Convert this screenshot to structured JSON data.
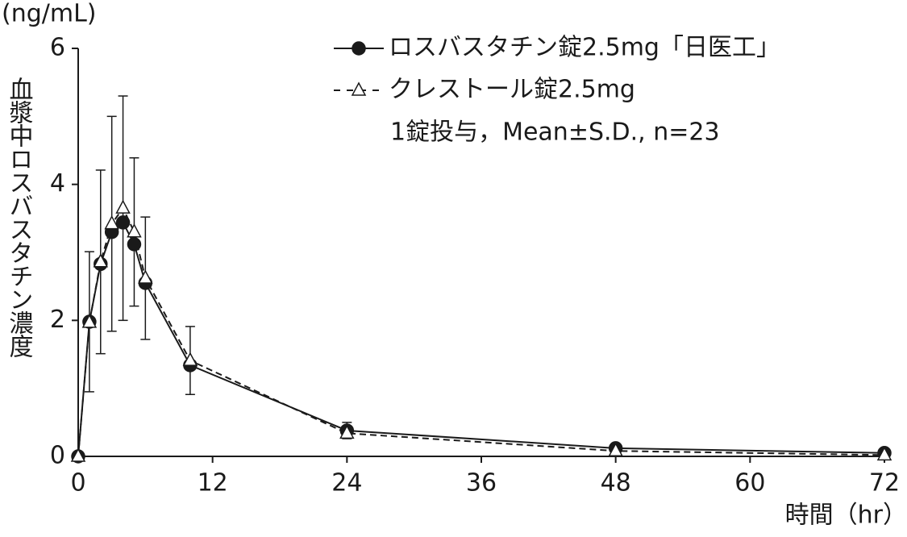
{
  "chart_data": {
    "type": "line",
    "y_unit": "(ng/mL)",
    "ylabel": "血漿中ロスバスタチン濃度",
    "xlabel": "時間（hr）",
    "annotation": "1錠投与，Mean±S.D., n=23",
    "x": [
      0,
      1,
      2,
      3,
      4,
      5,
      6,
      10,
      24,
      48,
      72
    ],
    "series": [
      {
        "name": "ロスバスタチン錠2.5mg「日医工」",
        "color": "#1a1a1a",
        "line_style": "solid",
        "marker": "circle",
        "marker_filled": true,
        "values": [
          0,
          1.98,
          2.83,
          3.3,
          3.44,
          3.12,
          2.55,
          1.34,
          0.38,
          0.12,
          0.05
        ],
        "errors": [
          null,
          1.03,
          null,
          null,
          null,
          null,
          null,
          null,
          0.12,
          null,
          null
        ]
      },
      {
        "name": "クレストール錠2.5mg",
        "color": "#1a1a1a",
        "line_style": "dashed",
        "marker": "triangle",
        "marker_filled": false,
        "values": [
          0,
          1.97,
          2.86,
          3.42,
          3.65,
          3.3,
          2.62,
          1.41,
          0.34,
          0.08,
          0.02
        ],
        "errors": [
          null,
          null,
          1.35,
          1.58,
          1.65,
          1.09,
          0.9,
          0.5,
          null,
          null,
          null
        ]
      }
    ],
    "xlim": [
      0,
      72
    ],
    "xticks": [
      0,
      12,
      24,
      36,
      48,
      60,
      72
    ],
    "ylim": [
      0,
      6
    ],
    "yticks": [
      0,
      2,
      4,
      6
    ],
    "grid": false,
    "legend": "upper right"
  }
}
